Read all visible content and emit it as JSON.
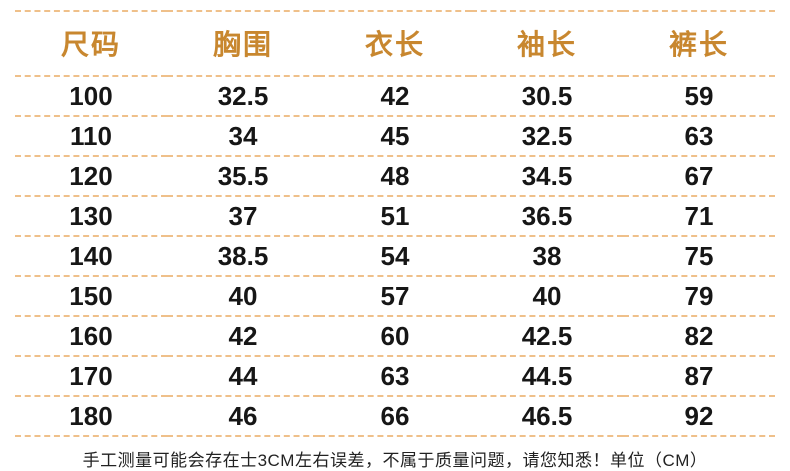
{
  "chart_data": {
    "type": "table",
    "columns": [
      "尺码",
      "胸围",
      "衣长",
      "袖长",
      "裤长"
    ],
    "rows": [
      [
        "100",
        "32.5",
        "42",
        "30.5",
        "59"
      ],
      [
        "110",
        "34",
        "45",
        "32.5",
        "63"
      ],
      [
        "120",
        "35.5",
        "48",
        "34.5",
        "67"
      ],
      [
        "130",
        "37",
        "51",
        "36.5",
        "71"
      ],
      [
        "140",
        "38.5",
        "54",
        "38",
        "75"
      ],
      [
        "150",
        "40",
        "57",
        "40",
        "79"
      ],
      [
        "160",
        "42",
        "60",
        "42.5",
        "82"
      ],
      [
        "170",
        "44",
        "63",
        "44.5",
        "87"
      ],
      [
        "180",
        "46",
        "66",
        "46.5",
        "92"
      ]
    ]
  },
  "note": "手工测量可能会存在士3CM左右误差，不属于质量问题，请您知悉！单位（CM）",
  "colors": {
    "header_text": "#c8872f",
    "divider": "#efc08a",
    "body_text": "#161616",
    "note_text": "#222222",
    "background": "#ffffff"
  }
}
